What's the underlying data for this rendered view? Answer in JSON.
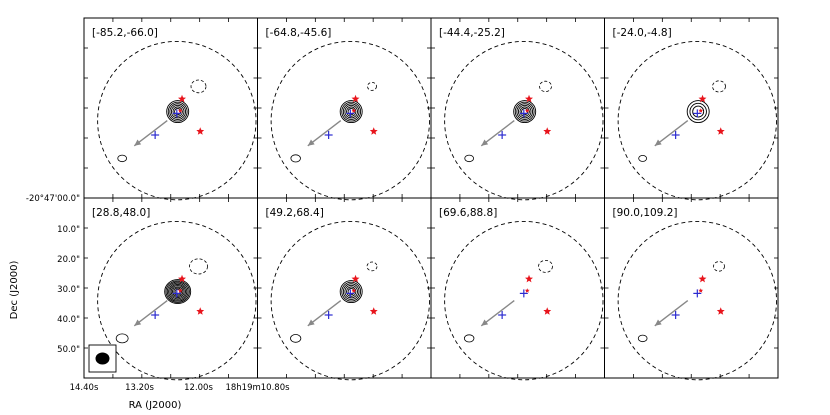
{
  "chart_data": {
    "type": "contour",
    "xlabel": "RA (J2000)",
    "ylabel": "Dec (J2000)",
    "x_ticks": [
      "14.40s",
      "13.20s",
      "12.00s",
      "18h19m10.80s"
    ],
    "y_ticks": [
      "-20°47'00.0\"",
      "10.0\"",
      "20.0\"",
      "30.0\"",
      "40.0\"",
      "50.0\""
    ],
    "colors": {
      "contour": "#000000",
      "star": "#e8141c",
      "plus": "#2b2bd0",
      "arrow": "#888888"
    },
    "panels": [
      {
        "label": "[-85.2,-66.0]",
        "peak": 6,
        "blobs": [
          0.6,
          1.1
        ]
      },
      {
        "label": "[-64.8,-45.6]",
        "peak": 6,
        "blobs": [
          0.7,
          0.5
        ]
      },
      {
        "label": "[-44.4,-25.2]",
        "peak": 6,
        "blobs": [
          0.6,
          0.8
        ]
      },
      {
        "label": "[-24.0,-4.8]",
        "peak": 3,
        "blobs": [
          0.5,
          0.9
        ]
      },
      {
        "label": "[28.8,48.0]",
        "peak": 9,
        "blobs": [
          1.0,
          1.4
        ]
      },
      {
        "label": "[49.2,68.4]",
        "peak": 6,
        "blobs": [
          0.8,
          0.6
        ]
      },
      {
        "label": "[69.6,88.8]",
        "peak": 0,
        "blobs": [
          0.7,
          1.0
        ]
      },
      {
        "label": "[90.0,109.2]",
        "peak": 0,
        "blobs": [
          0.6,
          0.7
        ]
      }
    ]
  }
}
